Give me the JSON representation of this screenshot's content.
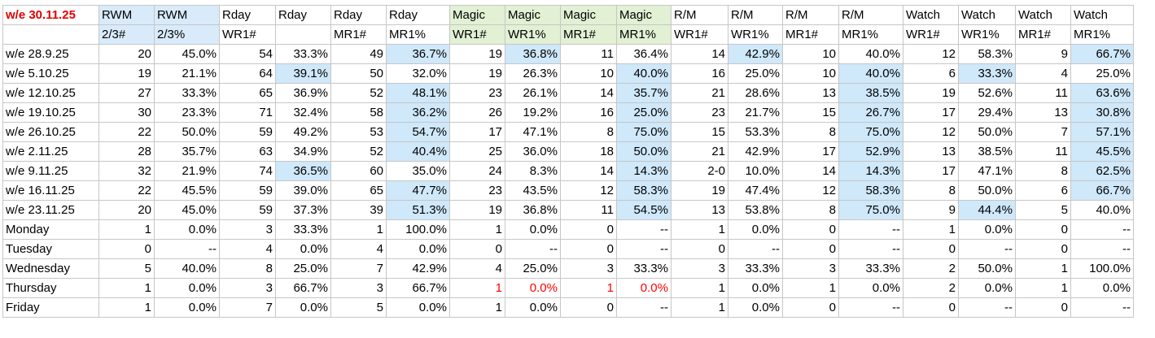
{
  "sheet": {
    "corner_label": "w/e 30.11.25",
    "header_row1": [
      "RWM",
      "RWM",
      "Rday",
      "Rday",
      "Rday",
      "Rday",
      "Magic",
      "Magic",
      "Magic",
      "Magic",
      "R/M",
      "R/M",
      "R/M",
      "R/M",
      "Watch",
      "Watch",
      "Watch",
      "Watch"
    ],
    "header_row2": [
      "2/3#",
      "2/3%",
      "WR1#",
      "",
      "MR1#",
      "MR1%",
      "WR1#",
      "WR1%",
      "MR1#",
      "MR1%",
      "WR1#",
      "WR1%",
      "MR1#",
      "MR1%",
      "WR1#",
      "WR1%",
      "MR1#",
      "MR1%"
    ],
    "header_fill": [
      "rwm",
      "rwm",
      "",
      "",
      "",
      "",
      "magic",
      "magic",
      "magic",
      "magic",
      "",
      "",
      "",
      "",
      "",
      "",
      "",
      ""
    ],
    "rows": [
      {
        "label": "w/e 28.9.25",
        "cells": [
          "20",
          "45.0%",
          "54",
          "33.3%",
          "49",
          "36.7%",
          "19",
          "36.8%",
          "11",
          "36.4%",
          "14",
          "42.9%",
          "10",
          "40.0%",
          "12",
          "58.3%",
          "9",
          "66.7%"
        ],
        "hl": [
          5,
          7,
          11,
          17
        ],
        "red": []
      },
      {
        "label": "w/e 5.10.25",
        "cells": [
          "19",
          "21.1%",
          "64",
          "39.1%",
          "50",
          "32.0%",
          "19",
          "26.3%",
          "10",
          "40.0%",
          "16",
          "25.0%",
          "10",
          "40.0%",
          "6",
          "33.3%",
          "4",
          "25.0%"
        ],
        "hl": [
          3,
          9,
          13,
          15
        ],
        "red": []
      },
      {
        "label": "w/e 12.10.25",
        "cells": [
          "27",
          "33.3%",
          "65",
          "36.9%",
          "52",
          "48.1%",
          "23",
          "26.1%",
          "14",
          "35.7%",
          "21",
          "28.6%",
          "13",
          "38.5%",
          "19",
          "52.6%",
          "11",
          "63.6%"
        ],
        "hl": [
          5,
          9,
          13,
          17
        ],
        "red": []
      },
      {
        "label": "w/e 19.10.25",
        "cells": [
          "30",
          "23.3%",
          "71",
          "32.4%",
          "58",
          "36.2%",
          "26",
          "19.2%",
          "16",
          "25.0%",
          "23",
          "21.7%",
          "15",
          "26.7%",
          "17",
          "29.4%",
          "13",
          "30.8%"
        ],
        "hl": [
          5,
          9,
          13,
          17
        ],
        "red": []
      },
      {
        "label": "w/e 26.10.25",
        "cells": [
          "22",
          "50.0%",
          "59",
          "49.2%",
          "53",
          "54.7%",
          "17",
          "47.1%",
          "8",
          "75.0%",
          "15",
          "53.3%",
          "8",
          "75.0%",
          "12",
          "50.0%",
          "7",
          "57.1%"
        ],
        "hl": [
          5,
          9,
          13,
          17
        ],
        "red": []
      },
      {
        "label": "w/e 2.11.25",
        "cells": [
          "28",
          "35.7%",
          "63",
          "34.9%",
          "52",
          "40.4%",
          "25",
          "36.0%",
          "18",
          "50.0%",
          "21",
          "42.9%",
          "17",
          "52.9%",
          "13",
          "38.5%",
          "11",
          "45.5%"
        ],
        "hl": [
          5,
          9,
          13,
          17
        ],
        "red": []
      },
      {
        "label": "w/e 9.11.25",
        "cells": [
          "32",
          "21.9%",
          "74",
          "36.5%",
          "60",
          "35.0%",
          "24",
          "8.3%",
          "14",
          "14.3%",
          "2-0",
          "10.0%",
          "14",
          "14.3%",
          "17",
          "47.1%",
          "8",
          "62.5%"
        ],
        "hl": [
          3,
          9,
          13,
          17
        ],
        "red": []
      },
      {
        "label": "w/e 16.11.25",
        "cells": [
          "22",
          "45.5%",
          "59",
          "39.0%",
          "65",
          "47.7%",
          "23",
          "43.5%",
          "12",
          "58.3%",
          "19",
          "47.4%",
          "12",
          "58.3%",
          "8",
          "50.0%",
          "6",
          "66.7%"
        ],
        "hl": [
          5,
          9,
          13,
          17
        ],
        "red": []
      },
      {
        "label": "w/e 23.11.25",
        "cells": [
          "20",
          "45.0%",
          "59",
          "37.3%",
          "39",
          "51.3%",
          "19",
          "36.8%",
          "11",
          "54.5%",
          "13",
          "53.8%",
          "8",
          "75.0%",
          "9",
          "44.4%",
          "5",
          "40.0%"
        ],
        "hl": [
          5,
          9,
          13,
          15
        ],
        "red": []
      },
      {
        "label": "Monday",
        "cells": [
          "1",
          "0.0%",
          "3",
          "33.3%",
          "1",
          "100.0%",
          "1",
          "0.0%",
          "0",
          "--",
          "1",
          "0.0%",
          "0",
          "--",
          "1",
          "0.0%",
          "0",
          "--"
        ],
        "hl": [],
        "red": []
      },
      {
        "label": "Tuesday",
        "cells": [
          "0",
          "--",
          "4",
          "0.0%",
          "4",
          "0.0%",
          "0",
          "--",
          "0",
          "--",
          "0",
          "--",
          "0",
          "--",
          "0",
          "--",
          "0",
          "--"
        ],
        "hl": [],
        "red": []
      },
      {
        "label": "Wednesday",
        "cells": [
          "5",
          "40.0%",
          "8",
          "25.0%",
          "7",
          "42.9%",
          "4",
          "25.0%",
          "3",
          "33.3%",
          "3",
          "33.3%",
          "3",
          "33.3%",
          "2",
          "50.0%",
          "1",
          "100.0%"
        ],
        "hl": [],
        "red": []
      },
      {
        "label": "Thursday",
        "cells": [
          "1",
          "0.0%",
          "3",
          "66.7%",
          "3",
          "66.7%",
          "1",
          "0.0%",
          "1",
          "0.0%",
          "1",
          "0.0%",
          "1",
          "0.0%",
          "2",
          "0.0%",
          "1",
          "0.0%"
        ],
        "hl": [],
        "red": [
          6,
          7,
          8,
          9
        ]
      },
      {
        "label": "Friday",
        "cells": [
          "1",
          "0.0%",
          "7",
          "0.0%",
          "5",
          "0.0%",
          "1",
          "0.0%",
          "0",
          "--",
          "1",
          "0.0%",
          "0",
          "--",
          "0",
          "--",
          "0",
          "--"
        ],
        "hl": [],
        "red": []
      }
    ]
  }
}
